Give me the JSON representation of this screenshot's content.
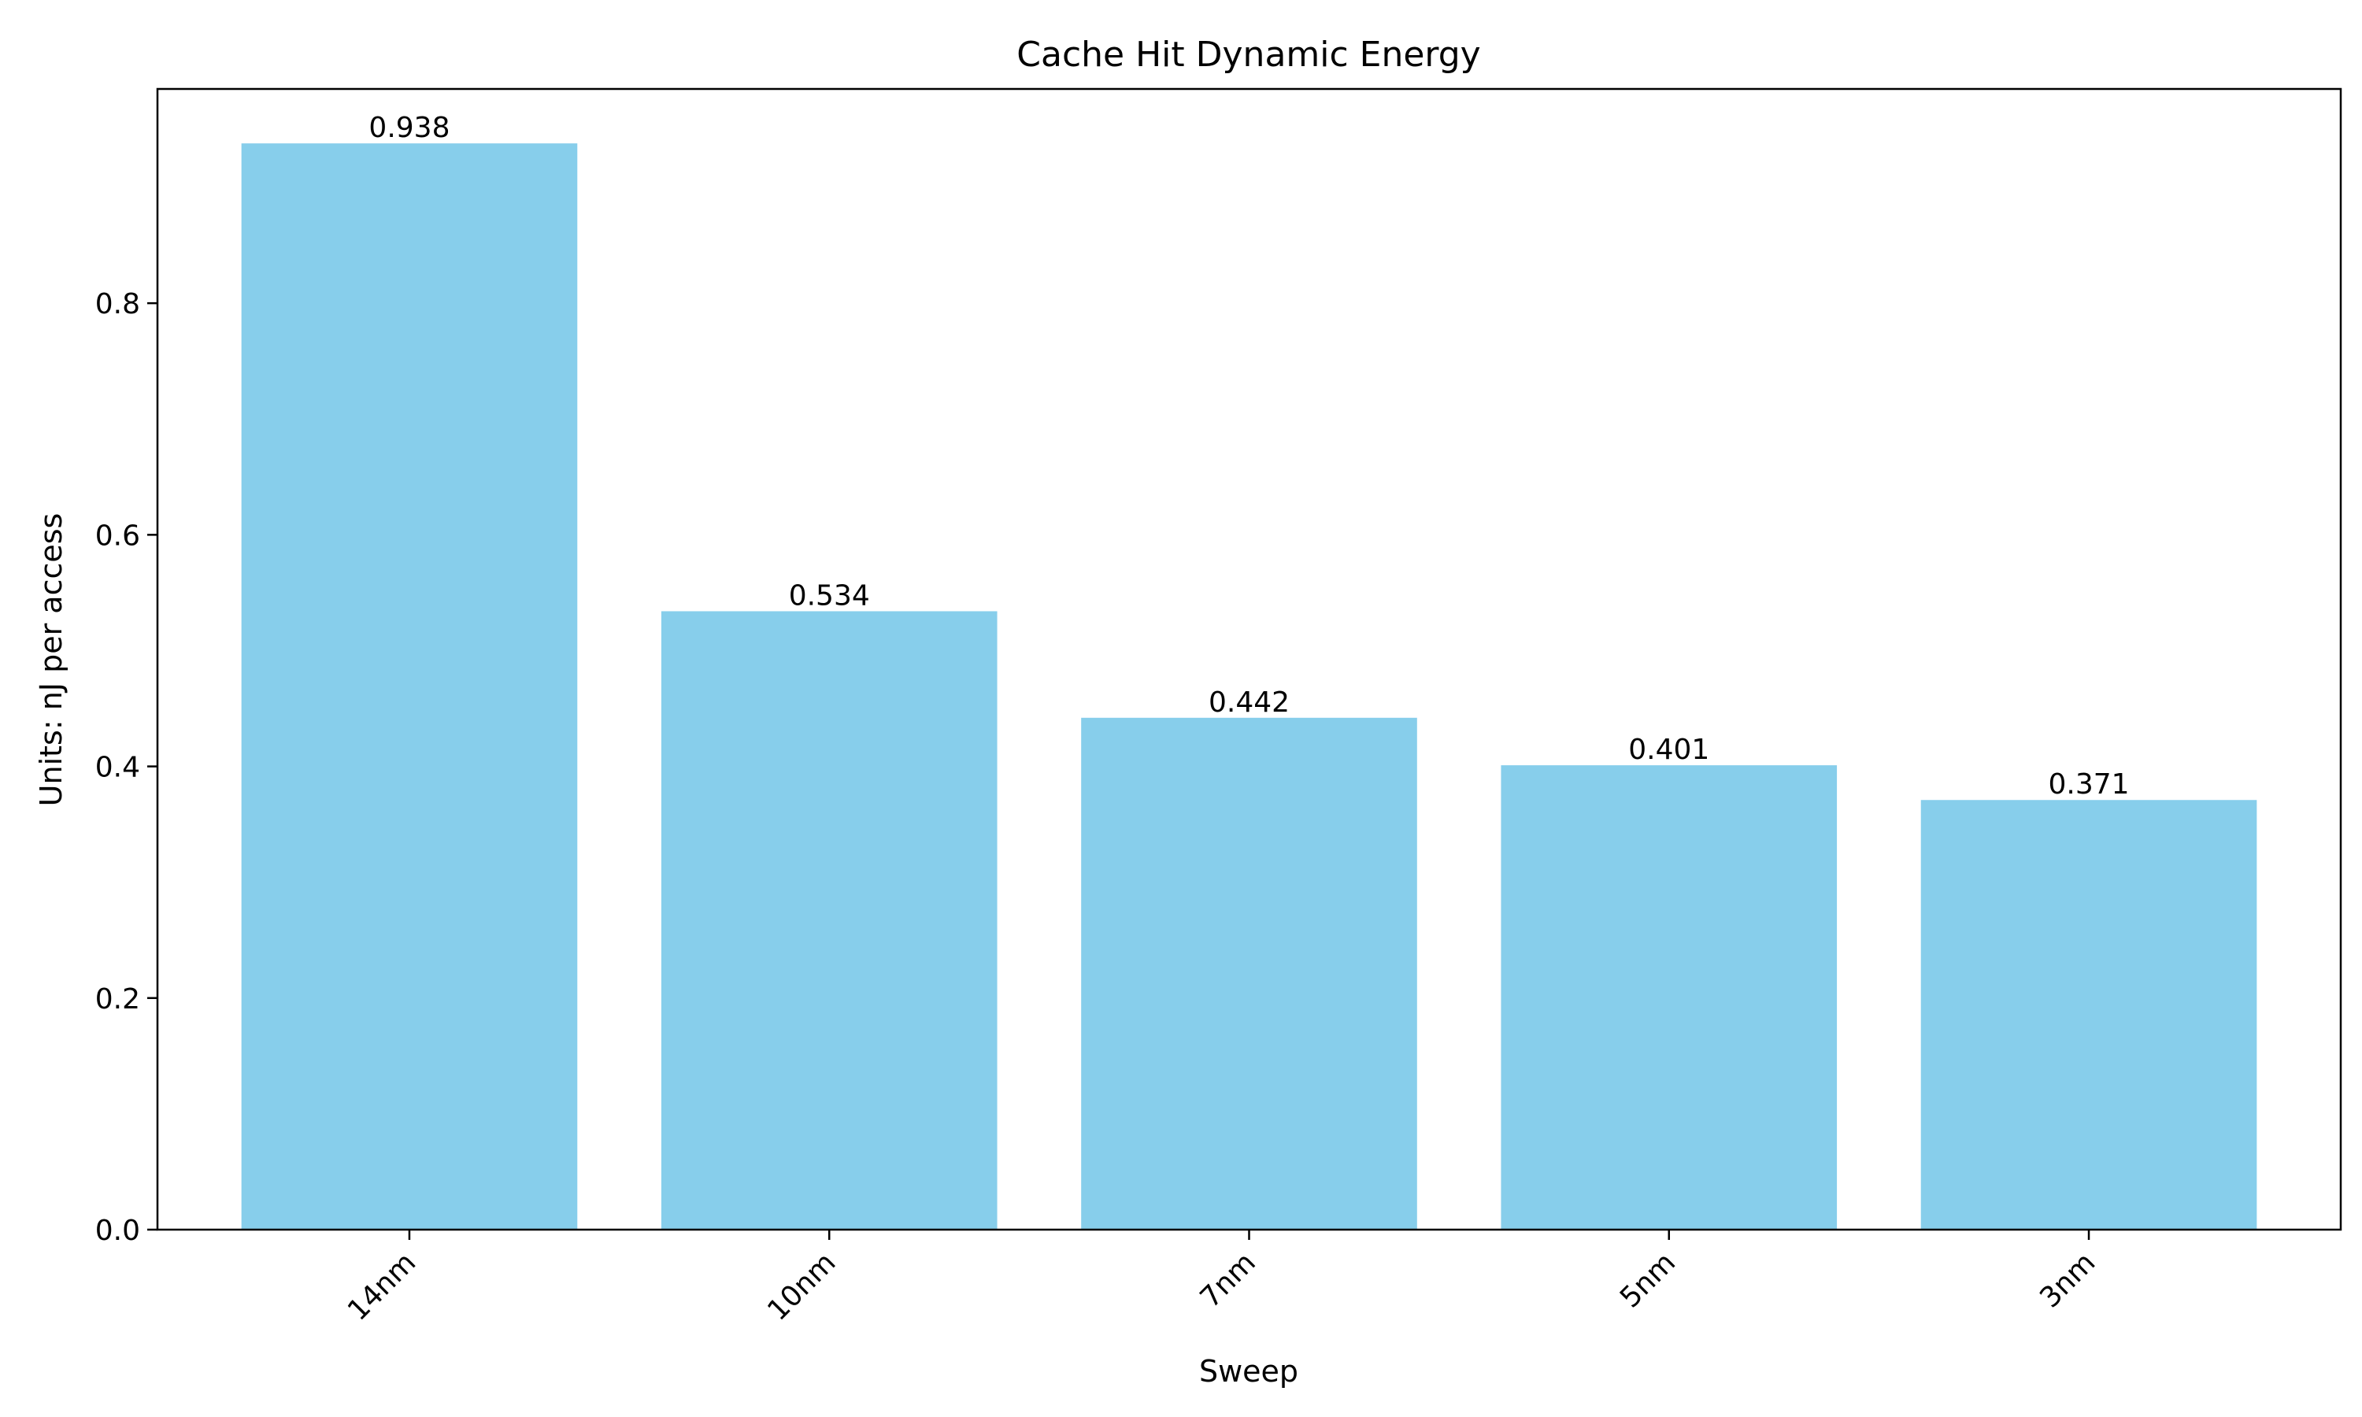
{
  "chart_data": {
    "type": "bar",
    "title": "Cache Hit Dynamic Energy",
    "xlabel": "Sweep",
    "ylabel": "Units: nJ per access",
    "categories": [
      "14nm",
      "10nm",
      "7nm",
      "5nm",
      "3nm"
    ],
    "values": [
      0.938,
      0.534,
      0.442,
      0.401,
      0.371
    ],
    "value_labels": [
      "0.938",
      "0.534",
      "0.442",
      "0.401",
      "0.371"
    ],
    "ylim": [
      0,
      0.985
    ],
    "yticks": [
      0.0,
      0.2,
      0.4,
      0.6,
      0.8
    ],
    "ytick_labels": [
      "0.0",
      "0.2",
      "0.4",
      "0.6",
      "0.8"
    ],
    "grid": false,
    "bar_color": "#87CEEB"
  }
}
